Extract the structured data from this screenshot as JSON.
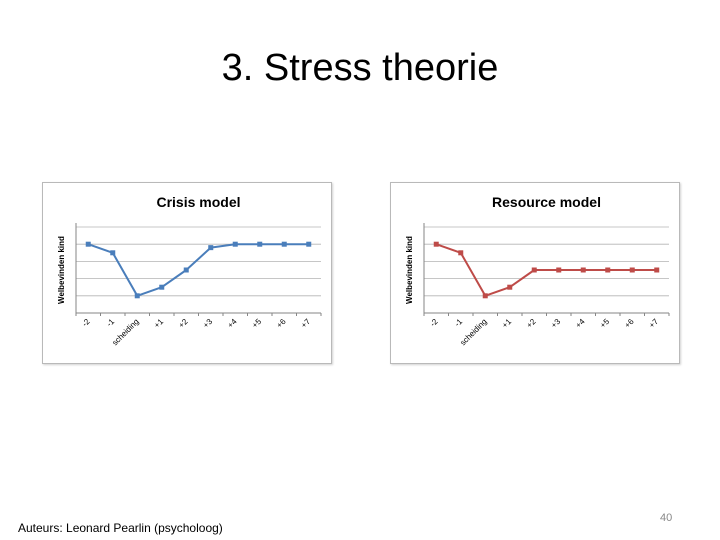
{
  "slide": {
    "title": "3. Stress theorie",
    "footer": "Auteurs: Leonard Pearlin (psycholoog)",
    "page_number": "40"
  },
  "chart_data": [
    {
      "type": "line",
      "title": "Crisis model",
      "ylabel": "Welbevinden kind",
      "xlabel": "",
      "categories": [
        "-2",
        "-1",
        "scheiding",
        "+1",
        "+2",
        "+3",
        "+4",
        "+5",
        "+6",
        "+7"
      ],
      "series": [
        {
          "values": [
            4,
            3.5,
            1,
            1.5,
            2.5,
            3.8,
            4,
            4,
            4,
            4
          ],
          "color": "#4a7ebb"
        }
      ],
      "ylim": [
        0,
        5
      ],
      "grid": true,
      "legend": "none"
    },
    {
      "type": "line",
      "title": "Resource model",
      "ylabel": "Welbevinden kind",
      "xlabel": "",
      "categories": [
        "-2",
        "-1",
        "scheiding",
        "+1",
        "+2",
        "+3",
        "+4",
        "+5",
        "+6",
        "+7"
      ],
      "series": [
        {
          "values": [
            4,
            3.5,
            1,
            1.5,
            2.5,
            2.5,
            2.5,
            2.5,
            2.5,
            2.5
          ],
          "color": "#be4b48"
        }
      ],
      "ylim": [
        0,
        5
      ],
      "grid": true,
      "legend": "none"
    }
  ]
}
